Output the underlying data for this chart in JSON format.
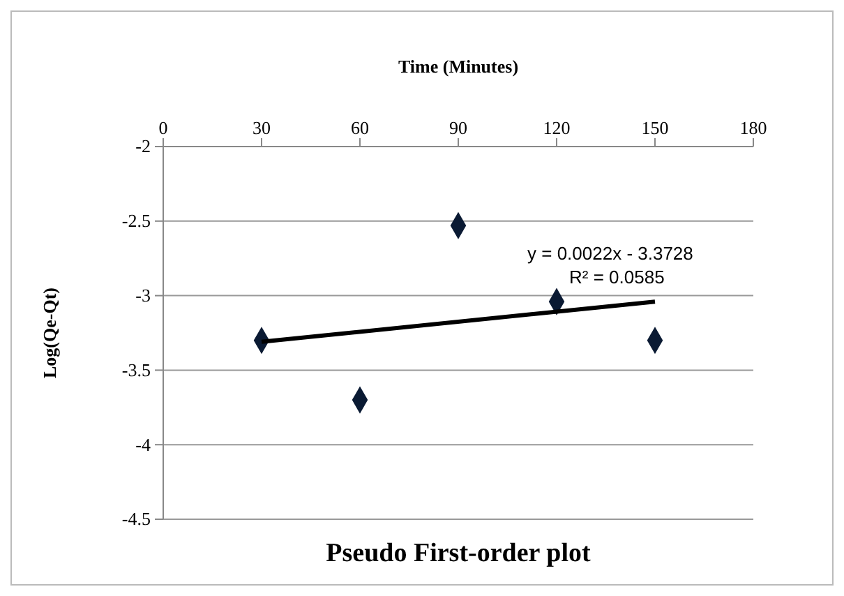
{
  "chart_data": {
    "type": "scatter",
    "title": "Pseudo First-order plot",
    "xlabel": "Time (Minutes)",
    "ylabel": "Log(Qe-Qt)",
    "xlim": [
      0,
      180
    ],
    "xticks": [
      0,
      30,
      60,
      90,
      120,
      150,
      180
    ],
    "ylim": [
      -4.5,
      -2
    ],
    "yticks": [
      -4.5,
      -4,
      -3.5,
      -3,
      -2.5,
      -2
    ],
    "grid": "y",
    "series": [
      {
        "type": "scatter",
        "color": "#0a1a33",
        "marker": "diamond",
        "x": [
          30,
          60,
          90,
          120,
          150
        ],
        "values": [
          -3.3,
          -3.7,
          -2.53,
          -3.04,
          -3.3
        ]
      },
      {
        "type": "line",
        "color": "#000000",
        "marker": "none",
        "line_style": "solid",
        "x": [
          30,
          150
        ],
        "values": [
          -3.31,
          -3.04
        ]
      }
    ],
    "annotations": [
      "y = 0.0022x - 3.3728",
      "R² = 0.0585"
    ]
  }
}
